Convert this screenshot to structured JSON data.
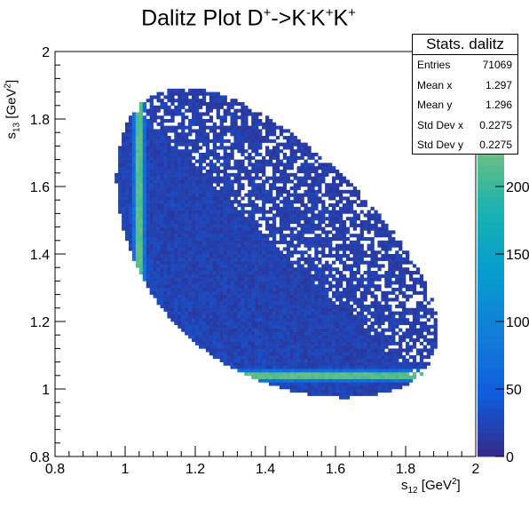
{
  "chart_data": {
    "type": "heatmap",
    "title": {
      "main": "Dalitz Plot D",
      "sup1": "+",
      "arrow": "->K",
      "sup2": "-",
      "k2": "K",
      "sup3": "+",
      "k3": "K",
      "sup4": "+"
    },
    "xlabel": {
      "base": "s",
      "sub": "12",
      "unit": "[GeV",
      "sup": "2",
      "close": "]"
    },
    "ylabel": {
      "base": "s",
      "sub": "13",
      "unit": "[GeV",
      "sup": "2",
      "close": "]"
    },
    "xlim": [
      0.8,
      2.0
    ],
    "ylim": [
      0.8,
      2.0
    ],
    "xticks": [
      "0.8",
      "1",
      "1.2",
      "1.4",
      "1.6",
      "1.8",
      "2"
    ],
    "yticks": [
      "0.8",
      "1",
      "1.2",
      "1.4",
      "1.6",
      "1.8",
      "2"
    ],
    "zlim": [
      0,
      300
    ],
    "zticks": [
      "0",
      "50",
      "100",
      "150",
      "200"
    ],
    "colormap": "kBird",
    "colors": {
      "low": "#352a87",
      "mid_low": "#1478d4",
      "mid": "#38b99e",
      "mid_high": "#cbbd4f",
      "high": "#f9fb0e"
    },
    "bins": {
      "nx": 120,
      "ny": 120
    },
    "description_features": {
      "resonance_band_x": {
        "s12": 1.04,
        "s13_range": [
          1.33,
          1.85
        ],
        "peak_counts": 250
      },
      "resonance_band_y": {
        "s13": 1.04,
        "s12_range": [
          1.33,
          1.85
        ],
        "peak_counts": 250
      },
      "background_counts": [
        5,
        60
      ]
    }
  },
  "stats": {
    "title": "Stats. dalitz",
    "rows": [
      {
        "label": "Entries",
        "value": "71069"
      },
      {
        "label": "Mean x",
        "value": "1.297"
      },
      {
        "label": "Mean y",
        "value": "1.296"
      },
      {
        "label": "Std Dev x",
        "value": "0.2275"
      },
      {
        "label": "Std Dev y",
        "value": "0.2275"
      }
    ]
  }
}
